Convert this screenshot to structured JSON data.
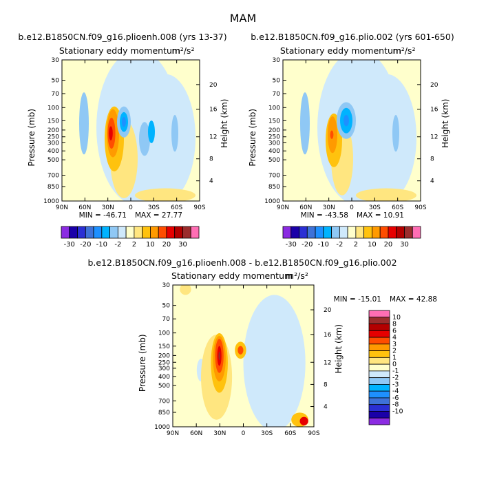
{
  "figure": {
    "season_title": "MAM"
  },
  "palette": {
    "top": [
      "#8b2be2",
      "#1a00a8",
      "#2a2fd4",
      "#3e72d8",
      "#1e90ff",
      "#00b3ff",
      "#8fc8f5",
      "#cfe9fb",
      "#ffffcc",
      "#ffe680",
      "#ffc20e",
      "#ff9a00",
      "#ff4d00",
      "#e60000",
      "#b30000",
      "#9b2d2d",
      "#ff6eb4"
    ],
    "diff": [
      "#8b2be2",
      "#1a00a8",
      "#2a2fd4",
      "#3e72d8",
      "#1e90ff",
      "#00b3ff",
      "#8fc8f5",
      "#cfe9fb",
      "#ffffcc",
      "#ffe680",
      "#ffc20e",
      "#ff9a00",
      "#ff4d00",
      "#e60000",
      "#b30000",
      "#9b2d2d",
      "#ff6eb4"
    ]
  },
  "chart_data": [
    {
      "type": "heatmap",
      "panel_label": "b.e12.B1850CN.f09_g16.plioenh.008 (yrs 13-37)",
      "title": "Stationary eddy momentum",
      "units_label": "m²/s²",
      "ylabel": "Pressure (mb)",
      "ylabel_right": "Height (km)",
      "xticks": [
        "90N",
        "60N",
        "30N",
        "0",
        "30S",
        "60S",
        "90S"
      ],
      "yticks": [
        "30",
        "50",
        "70",
        "100",
        "150",
        "200",
        "250",
        "300",
        "400",
        "500",
        "700",
        "850",
        "1000"
      ],
      "height_ticks": [
        "4",
        "8",
        "12",
        "16",
        "20"
      ],
      "min_label": "MIN = -46.71",
      "max_label": "MAX = 27.77",
      "colorbar_labels": [
        "-30",
        "-20",
        "-10",
        "-2",
        "2",
        "10",
        "20",
        "30"
      ]
    },
    {
      "type": "heatmap",
      "panel_label": "b.e12.B1850CN.f09_g16.plio.002 (yrs 601-650)",
      "title": "Stationary eddy momentum",
      "units_label": "m²/s²",
      "ylabel": "Pressure (mb)",
      "ylabel_right": "Height (km)",
      "xticks": [
        "90N",
        "60N",
        "30N",
        "0",
        "30S",
        "60S",
        "90S"
      ],
      "yticks": [
        "30",
        "50",
        "70",
        "100",
        "150",
        "200",
        "250",
        "300",
        "400",
        "500",
        "700",
        "850",
        "1000"
      ],
      "height_ticks": [
        "4",
        "8",
        "12",
        "16",
        "20"
      ],
      "min_label": "MIN = -43.58",
      "max_label": "MAX = 10.91",
      "colorbar_labels": [
        "-30",
        "-20",
        "-10",
        "-2",
        "2",
        "10",
        "20",
        "30"
      ]
    },
    {
      "type": "heatmap",
      "panel_label": "b.e12.B1850CN.f09_g16.plioenh.008 - b.e12.B1850CN.f09_g16.plio.002",
      "title": "Stationary eddy momentum",
      "units_label": "m²/s²",
      "ylabel": "Pressure (mb)",
      "ylabel_right": "Height (km)",
      "xticks": [
        "90N",
        "60N",
        "30N",
        "0",
        "30S",
        "60S",
        "90S"
      ],
      "yticks": [
        "30",
        "50",
        "70",
        "100",
        "150",
        "200",
        "250",
        "300",
        "400",
        "500",
        "700",
        "850",
        "1000"
      ],
      "height_ticks": [
        "4",
        "8",
        "12",
        "16",
        "20"
      ],
      "min_label": "MIN = -15.01",
      "max_label": "MAX =  42.88",
      "colorbar_labels": [
        "10",
        "8",
        "6",
        "4",
        "3",
        "2",
        "1",
        "0",
        "-1",
        "-2",
        "-3",
        "-4",
        "-6",
        "-8",
        "-10"
      ]
    }
  ]
}
